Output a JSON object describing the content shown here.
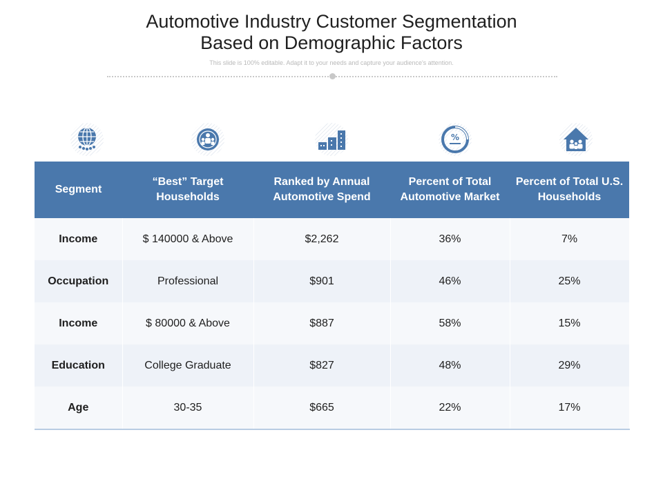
{
  "header": {
    "title_line1": "Automotive Industry Customer Segmentation",
    "title_line2": "Based on Demographic Factors",
    "subtitle": "This slide is 100% editable. Adapt it to your needs and capture your audience's attention."
  },
  "icons": [
    "globe-people-icon",
    "target-group-icon",
    "building-chart-icon",
    "percent-chart-icon",
    "home-family-icon"
  ],
  "colors": {
    "accent": "#4a78ac",
    "row_light": "#f6f8fb",
    "row_alt": "#eef2f8"
  },
  "table": {
    "headers": [
      "Segment",
      "“Best” Target Households",
      "Ranked by Annual Automotive Spend",
      "Percent of Total Automotive Market",
      "Percent of Total U.S. Households"
    ],
    "rows": [
      [
        "Income",
        "$ 140000 & Above",
        "$2,262",
        "36%",
        "7%"
      ],
      [
        "Occupation",
        "Professional",
        "$901",
        "46%",
        "25%"
      ],
      [
        "Income",
        "$ 80000 & Above",
        "$887",
        "58%",
        "15%"
      ],
      [
        "Education",
        "College Graduate",
        "$827",
        "48%",
        "29%"
      ],
      [
        "Age",
        "30-35",
        "$665",
        "22%",
        "17%"
      ]
    ]
  }
}
